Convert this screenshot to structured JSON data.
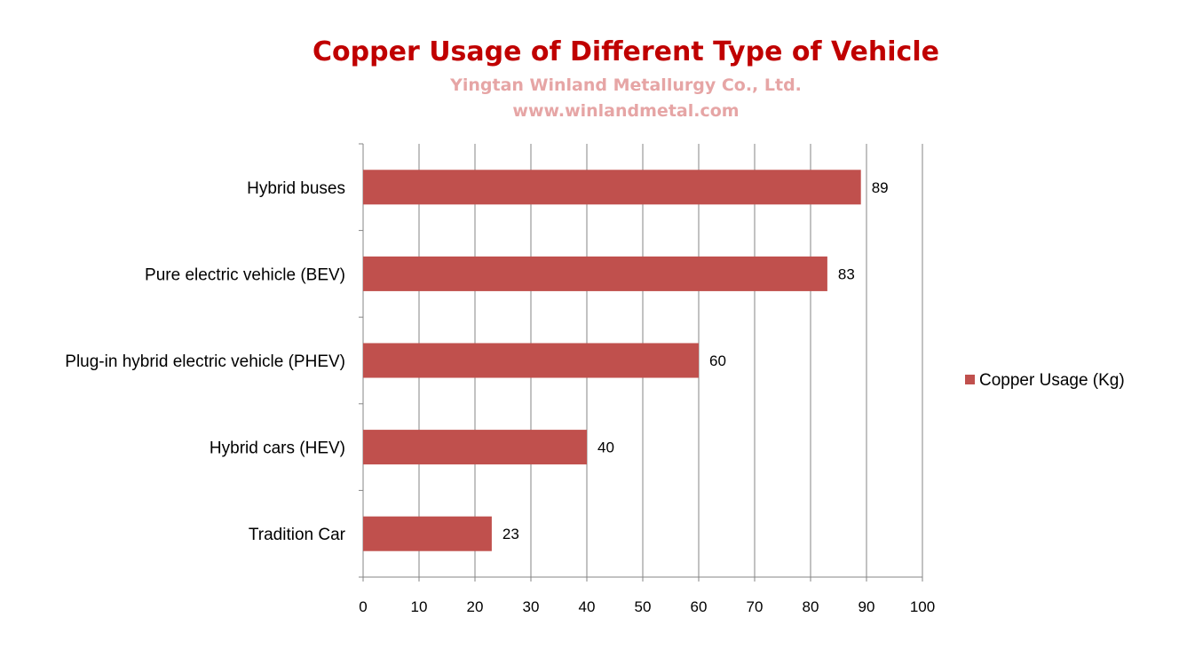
{
  "chart_data": {
    "type": "bar",
    "orientation": "horizontal",
    "title": "Copper Usage of Different Type of Vehicle",
    "subtitle": "Yingtan Winland Metallurgy Co., Ltd.",
    "subtitle2": "www.winlandmetal.com",
    "categories": [
      "Hybrid buses",
      "Pure electric vehicle (BEV)",
      "Plug-in hybrid electric vehicle (PHEV)",
      "Hybrid cars (HEV)",
      "Tradition Car"
    ],
    "series": [
      {
        "name": "Copper Usage (Kg)",
        "values": [
          89,
          83,
          60,
          40,
          23
        ],
        "color": "#C0504D"
      }
    ],
    "xlim": [
      0,
      100
    ],
    "x_ticks": [
      0,
      10,
      20,
      30,
      40,
      50,
      60,
      70,
      80,
      90,
      100
    ],
    "grid": "vertical",
    "legend_position": "right",
    "data_labels": true
  },
  "colors": {
    "title": "#C00000",
    "subtitle": "#E6A5A5",
    "bar": "#C0504D",
    "grid": "#868686",
    "axis": "#868686"
  }
}
